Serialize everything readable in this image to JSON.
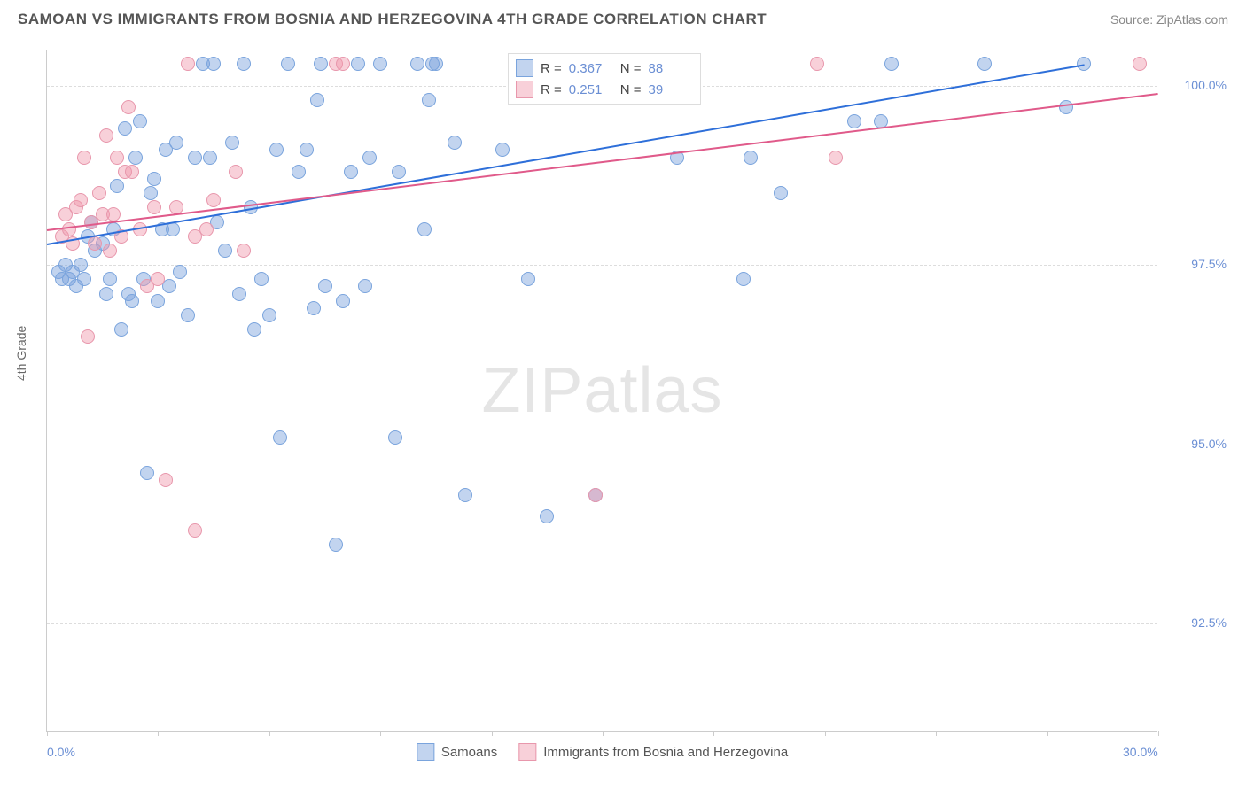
{
  "header": {
    "title": "SAMOAN VS IMMIGRANTS FROM BOSNIA AND HERZEGOVINA 4TH GRADE CORRELATION CHART",
    "source": "Source: ZipAtlas.com"
  },
  "chart": {
    "type": "scatter",
    "ylabel": "4th Grade",
    "xlim": [
      0,
      30
    ],
    "ylim": [
      91,
      100.5
    ],
    "background_color": "#ffffff",
    "grid_color": "#dddddd",
    "axis_color": "#cccccc",
    "tick_label_color": "#6b8fd4",
    "watermark": "ZIPatlas",
    "yticks": [
      {
        "value": 92.5,
        "label": "92.5%"
      },
      {
        "value": 95.0,
        "label": "95.0%"
      },
      {
        "value": 97.5,
        "label": "97.5%"
      },
      {
        "value": 100.0,
        "label": "100.0%"
      }
    ],
    "xticks": [
      {
        "value": 0,
        "label": "0.0%"
      },
      {
        "value": 3,
        "label": ""
      },
      {
        "value": 6,
        "label": ""
      },
      {
        "value": 9,
        "label": ""
      },
      {
        "value": 12,
        "label": ""
      },
      {
        "value": 15,
        "label": ""
      },
      {
        "value": 18,
        "label": ""
      },
      {
        "value": 21,
        "label": ""
      },
      {
        "value": 24,
        "label": ""
      },
      {
        "value": 27,
        "label": ""
      },
      {
        "value": 30,
        "label": "30.0%"
      }
    ],
    "marker_radius": 8,
    "series": [
      {
        "name": "Samoans",
        "fill": "rgba(120,160,220,0.45)",
        "stroke": "#7aa4dd",
        "trend_color": "#2e6fd9",
        "trend": {
          "x1": 0,
          "y1": 97.8,
          "x2": 28,
          "y2": 100.3
        },
        "R": "0.367",
        "N": "88",
        "points": [
          [
            0.3,
            97.4
          ],
          [
            0.4,
            97.3
          ],
          [
            0.5,
            97.5
          ],
          [
            0.6,
            97.3
          ],
          [
            0.7,
            97.4
          ],
          [
            0.8,
            97.2
          ],
          [
            0.9,
            97.5
          ],
          [
            1.0,
            97.3
          ],
          [
            1.1,
            97.9
          ],
          [
            1.2,
            98.1
          ],
          [
            1.3,
            97.7
          ],
          [
            1.5,
            97.8
          ],
          [
            1.6,
            97.1
          ],
          [
            1.7,
            97.3
          ],
          [
            1.8,
            98.0
          ],
          [
            1.9,
            98.6
          ],
          [
            2.0,
            96.6
          ],
          [
            2.1,
            99.4
          ],
          [
            2.2,
            97.1
          ],
          [
            2.3,
            97.0
          ],
          [
            2.4,
            99.0
          ],
          [
            2.5,
            99.5
          ],
          [
            2.6,
            97.3
          ],
          [
            2.7,
            94.6
          ],
          [
            2.8,
            98.5
          ],
          [
            2.9,
            98.7
          ],
          [
            3.0,
            97.0
          ],
          [
            3.1,
            98.0
          ],
          [
            3.2,
            99.1
          ],
          [
            3.3,
            97.2
          ],
          [
            3.4,
            98.0
          ],
          [
            3.5,
            99.2
          ],
          [
            3.6,
            97.4
          ],
          [
            3.8,
            96.8
          ],
          [
            4.0,
            99.0
          ],
          [
            4.2,
            100.3
          ],
          [
            4.4,
            99.0
          ],
          [
            4.5,
            100.3
          ],
          [
            4.6,
            98.1
          ],
          [
            4.8,
            97.7
          ],
          [
            5.0,
            99.2
          ],
          [
            5.2,
            97.1
          ],
          [
            5.3,
            100.3
          ],
          [
            5.5,
            98.3
          ],
          [
            5.6,
            96.6
          ],
          [
            5.8,
            97.3
          ],
          [
            6.0,
            96.8
          ],
          [
            6.2,
            99.1
          ],
          [
            6.3,
            95.1
          ],
          [
            6.5,
            100.3
          ],
          [
            6.8,
            98.8
          ],
          [
            7.0,
            99.1
          ],
          [
            7.2,
            96.9
          ],
          [
            7.3,
            99.8
          ],
          [
            7.4,
            100.3
          ],
          [
            7.5,
            97.2
          ],
          [
            7.8,
            93.6
          ],
          [
            8.0,
            97.0
          ],
          [
            8.2,
            98.8
          ],
          [
            8.4,
            100.3
          ],
          [
            8.6,
            97.2
          ],
          [
            8.7,
            99.0
          ],
          [
            9.0,
            100.3
          ],
          [
            9.4,
            95.1
          ],
          [
            9.5,
            98.8
          ],
          [
            10.0,
            100.3
          ],
          [
            10.2,
            98.0
          ],
          [
            10.3,
            99.8
          ],
          [
            10.4,
            100.3
          ],
          [
            10.5,
            100.3
          ],
          [
            11.0,
            99.2
          ],
          [
            11.3,
            94.3
          ],
          [
            12.3,
            99.1
          ],
          [
            13.0,
            97.3
          ],
          [
            13.4,
            100.3
          ],
          [
            13.5,
            94.0
          ],
          [
            14.8,
            94.3
          ],
          [
            17.0,
            99.0
          ],
          [
            17.3,
            100.3
          ],
          [
            18.8,
            97.3
          ],
          [
            19.0,
            99.0
          ],
          [
            19.8,
            98.5
          ],
          [
            21.8,
            99.5
          ],
          [
            22.5,
            99.5
          ],
          [
            22.8,
            100.3
          ],
          [
            25.3,
            100.3
          ],
          [
            27.5,
            99.7
          ],
          [
            28.0,
            100.3
          ]
        ]
      },
      {
        "name": "Immigrants from Bosnia and Herzegovina",
        "fill": "rgba(240,150,170,0.45)",
        "stroke": "#e897ac",
        "trend_color": "#e05a8a",
        "trend": {
          "x1": 0,
          "y1": 98.0,
          "x2": 30,
          "y2": 99.9
        },
        "R": "0.251",
        "N": "39",
        "points": [
          [
            0.4,
            97.9
          ],
          [
            0.5,
            98.2
          ],
          [
            0.6,
            98.0
          ],
          [
            0.7,
            97.8
          ],
          [
            0.8,
            98.3
          ],
          [
            0.9,
            98.4
          ],
          [
            1.0,
            99.0
          ],
          [
            1.1,
            96.5
          ],
          [
            1.2,
            98.1
          ],
          [
            1.3,
            97.8
          ],
          [
            1.4,
            98.5
          ],
          [
            1.5,
            98.2
          ],
          [
            1.6,
            99.3
          ],
          [
            1.7,
            97.7
          ],
          [
            1.8,
            98.2
          ],
          [
            1.9,
            99.0
          ],
          [
            2.0,
            97.9
          ],
          [
            2.1,
            98.8
          ],
          [
            2.2,
            99.7
          ],
          [
            2.3,
            98.8
          ],
          [
            2.5,
            98.0
          ],
          [
            2.7,
            97.2
          ],
          [
            2.9,
            98.3
          ],
          [
            3.0,
            97.3
          ],
          [
            3.2,
            94.5
          ],
          [
            3.5,
            98.3
          ],
          [
            3.8,
            100.3
          ],
          [
            4.0,
            97.9
          ],
          [
            4.0,
            93.8
          ],
          [
            4.3,
            98.0
          ],
          [
            4.5,
            98.4
          ],
          [
            5.1,
            98.8
          ],
          [
            5.3,
            97.7
          ],
          [
            7.8,
            100.3
          ],
          [
            8.0,
            100.3
          ],
          [
            14.8,
            94.3
          ],
          [
            20.8,
            100.3
          ],
          [
            21.3,
            99.0
          ],
          [
            29.5,
            100.3
          ]
        ]
      }
    ],
    "legend_top": {
      "R_label": "R =",
      "N_label": "N ="
    },
    "bottom_legend": [
      {
        "label": "Samoans",
        "fill": "rgba(120,160,220,0.45)",
        "stroke": "#7aa4dd"
      },
      {
        "label": "Immigrants from Bosnia and Herzegovina",
        "fill": "rgba(240,150,170,0.45)",
        "stroke": "#e897ac"
      }
    ]
  }
}
